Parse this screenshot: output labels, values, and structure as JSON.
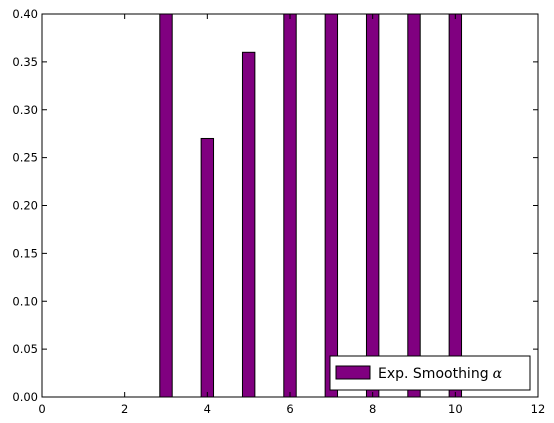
{
  "chart_data": {
    "type": "bar",
    "x": [
      3,
      4,
      5,
      6,
      7,
      8,
      9,
      10
    ],
    "series": [
      {
        "name": "Exp. Smoothing α",
        "name_text": "Exp. Smoothing",
        "name_symbol": "α",
        "values": [
          0.4,
          0.27,
          0.36,
          0.4,
          0.4,
          0.4,
          0.4,
          0.4
        ],
        "color": "#800080"
      }
    ],
    "xlim": [
      0,
      12
    ],
    "ylim": [
      0,
      0.4
    ],
    "xticks": [
      "0",
      "2",
      "4",
      "6",
      "8",
      "10",
      "12"
    ],
    "yticks": [
      "0.00",
      "0.05",
      "0.10",
      "0.15",
      "0.20",
      "0.25",
      "0.30",
      "0.35",
      "0.40"
    ],
    "bar_width": 0.3,
    "grid": false,
    "legend_position": "lower-right",
    "title": "",
    "xlabel": "",
    "ylabel": ""
  }
}
